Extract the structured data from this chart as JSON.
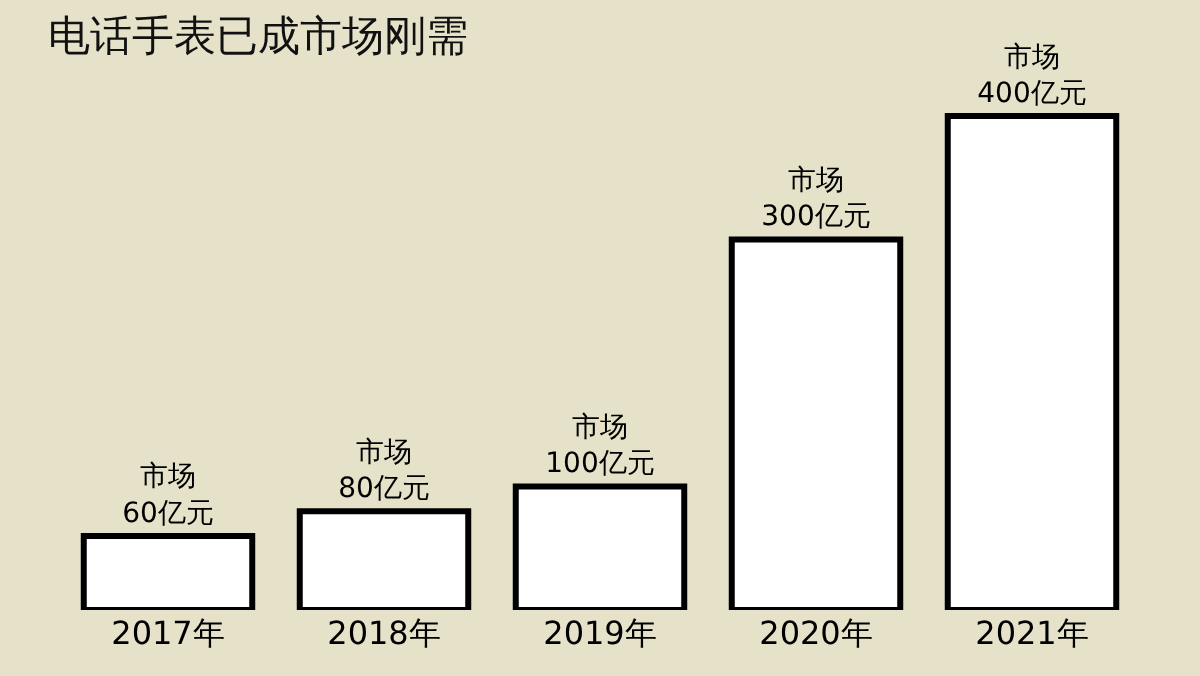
{
  "chart_data": {
    "type": "bar",
    "title": "电话手表已成市场刚需",
    "categories": [
      "2017年",
      "2018年",
      "2019年",
      "2020年",
      "2021年"
    ],
    "values": [
      60,
      80,
      100,
      300,
      400
    ],
    "value_labels": [
      "市场\n60亿元",
      "市场\n80亿元",
      "市场\n100亿元",
      "市场\n300亿元",
      "市场\n400亿元"
    ],
    "color": "#ffffff",
    "grid": false
  }
}
